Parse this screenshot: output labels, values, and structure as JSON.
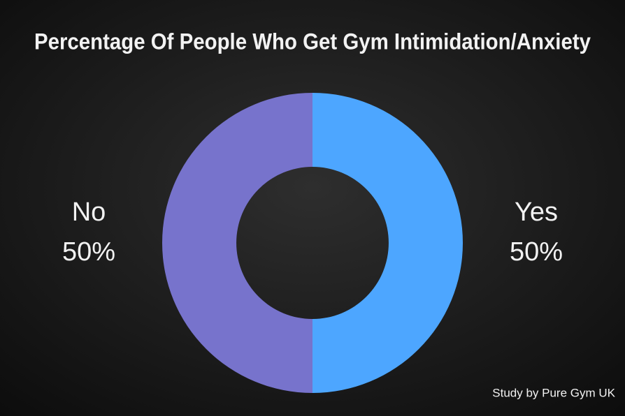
{
  "chart_data": {
    "type": "pie",
    "donut": true,
    "title": "Percentage Of People Who Get Gym Intimidation/Anxiety",
    "categories": [
      "Yes",
      "No"
    ],
    "values": [
      50,
      50
    ],
    "value_labels": [
      "50%",
      "50%"
    ],
    "colors": [
      "#4da6ff",
      "#7773cc"
    ],
    "source": "Study by Pure Gym UK"
  }
}
